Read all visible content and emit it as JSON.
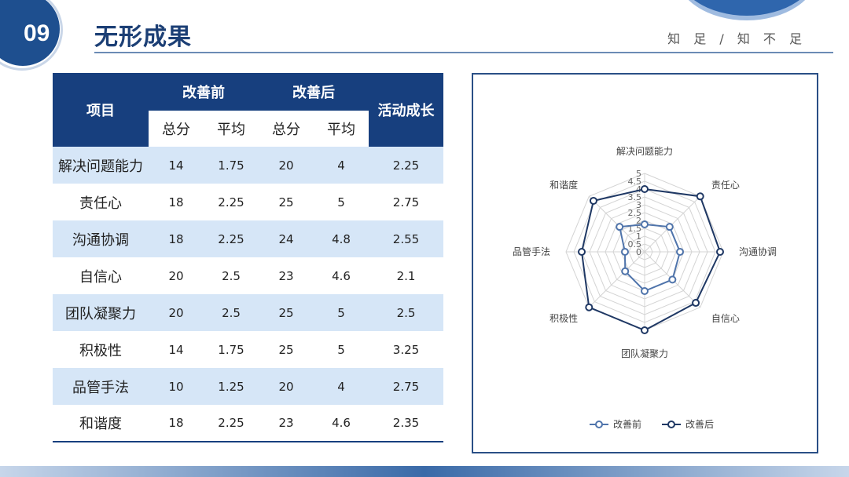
{
  "header": {
    "badge": "09",
    "title": "无形成果",
    "slogan": "知 足 / 知 不 足"
  },
  "table": {
    "col_item": "项目",
    "col_before": "改善前",
    "col_after": "改善后",
    "col_growth": "活动成长",
    "sub_total": "总分",
    "sub_avg": "平均",
    "rows": [
      {
        "name": "解决问题能力",
        "before_total": "14",
        "before_avg": "1.75",
        "after_total": "20",
        "after_avg": "4",
        "growth": "2.25"
      },
      {
        "name": "责任心",
        "before_total": "18",
        "before_avg": "2.25",
        "after_total": "25",
        "after_avg": "5",
        "growth": "2.75"
      },
      {
        "name": "沟通协调",
        "before_total": "18",
        "before_avg": "2.25",
        "after_total": "24",
        "after_avg": "4.8",
        "growth": "2.55"
      },
      {
        "name": "自信心",
        "before_total": "20",
        "before_avg": "2.5",
        "after_total": "23",
        "after_avg": "4.6",
        "growth": "2.1"
      },
      {
        "name": "团队凝聚力",
        "before_total": "20",
        "before_avg": "2.5",
        "after_total": "25",
        "after_avg": "5",
        "growth": "2.5"
      },
      {
        "name": "积极性",
        "before_total": "14",
        "before_avg": "1.75",
        "after_total": "25",
        "after_avg": "5",
        "growth": "3.25"
      },
      {
        "name": "品管手法",
        "before_total": "10",
        "before_avg": "1.25",
        "after_total": "20",
        "after_avg": "4",
        "growth": "2.75"
      },
      {
        "name": "和谐度",
        "before_total": "18",
        "before_avg": "2.25",
        "after_total": "23",
        "after_avg": "4.6",
        "growth": "2.35"
      }
    ]
  },
  "chart_data": {
    "type": "radar",
    "categories": [
      "解决问题能力",
      "责任心",
      "沟通协调",
      "自信心",
      "团队凝聚力",
      "积极性",
      "品管手法",
      "和谐度"
    ],
    "series": [
      {
        "name": "改善前",
        "values": [
          1.75,
          2.25,
          2.25,
          2.5,
          2.5,
          1.75,
          1.25,
          2.25
        ],
        "color": "#4f74ab"
      },
      {
        "name": "改善后",
        "values": [
          4,
          5,
          4.8,
          4.6,
          5,
          5,
          4,
          4.6
        ],
        "color": "#1f3864"
      }
    ],
    "ticks": [
      "0",
      "0.5",
      "1",
      "1.5",
      "2",
      "2.5",
      "3",
      "3.5",
      "4",
      "4.5",
      "5"
    ],
    "rmax": 5,
    "legend_position": "bottom"
  }
}
